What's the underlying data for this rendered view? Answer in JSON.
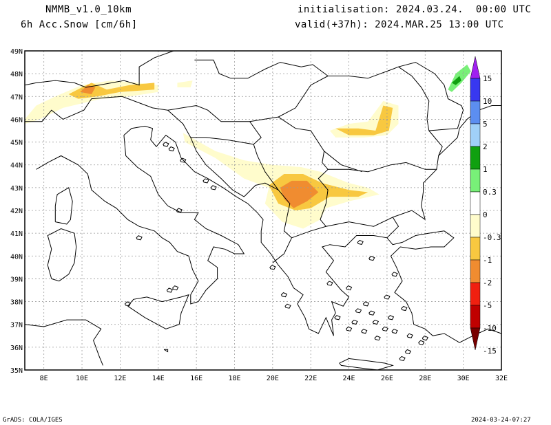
{
  "header": {
    "model": "NMMB_v1.0_10km",
    "variable": "6h Acc.Snow [cm/6h]",
    "init": "initialisation: 2024.03.24.  00:00 UTC",
    "valid": "valid(+37h): 2024.MAR.25 13:00 UTC"
  },
  "footer": {
    "credit": "GrADS: COLA/IGES",
    "timestamp": "2024-03-24-07:27"
  },
  "map": {
    "lon_labels": [
      "8E",
      "10E",
      "12E",
      "14E",
      "16E",
      "18E",
      "20E",
      "22E",
      "24E",
      "26E",
      "28E",
      "30E",
      "32E"
    ],
    "lat_labels": [
      "49N",
      "48N",
      "47N",
      "46N",
      "45N",
      "44N",
      "43N",
      "42N",
      "41N",
      "40N",
      "39N",
      "38N",
      "37N",
      "36N",
      "35N"
    ],
    "lon_range": [
      7,
      32
    ],
    "lat_range": [
      35,
      49
    ]
  },
  "colorbar": {
    "classes": [
      {
        "color": "#a020f0",
        "label": "15"
      },
      {
        "color": "#3838f0",
        "label": "10"
      },
      {
        "color": "#5c8ef0",
        "label": "5"
      },
      {
        "color": "#a0d0f8",
        "label": "2"
      },
      {
        "color": "#10a010",
        "label": "1"
      },
      {
        "color": "#78f078",
        "label": "0.3"
      },
      {
        "color": "#ffffff",
        "label": "0"
      },
      {
        "color": "#fffccc",
        "label": "-0.3"
      },
      {
        "color": "#f8c840",
        "label": "-1"
      },
      {
        "color": "#f08c30",
        "label": "-2"
      },
      {
        "color": "#f02010",
        "label": "-5"
      },
      {
        "color": "#c00000",
        "label": "-10"
      },
      {
        "color": "#780000",
        "label": "-15"
      }
    ]
  },
  "snow_areas": [
    {
      "name": "alps-west-light",
      "level": "light",
      "coords": [
        [
          7.0,
          46.0
        ],
        [
          7.6,
          46.6
        ],
        [
          8.6,
          47.0
        ],
        [
          10.0,
          47.5
        ],
        [
          11.5,
          47.7
        ],
        [
          13.0,
          47.6
        ],
        [
          14.0,
          47.5
        ],
        [
          14.0,
          47.2
        ],
        [
          12.5,
          47.0
        ],
        [
          11.0,
          46.9
        ],
        [
          9.0,
          46.5
        ],
        [
          7.8,
          46.0
        ],
        [
          7.0,
          45.8
        ]
      ]
    },
    {
      "name": "alps-moderate",
      "level": "moderate",
      "coords": [
        [
          9.3,
          47.1
        ],
        [
          10.0,
          47.4
        ],
        [
          10.5,
          47.6
        ],
        [
          11.3,
          47.3
        ],
        [
          12.5,
          47.5
        ],
        [
          13.8,
          47.6
        ],
        [
          13.8,
          47.3
        ],
        [
          12.0,
          47.2
        ],
        [
          10.8,
          47.0
        ],
        [
          9.8,
          46.9
        ]
      ]
    },
    {
      "name": "alps-heavy",
      "level": "heavy",
      "coords": [
        [
          9.9,
          47.2
        ],
        [
          10.3,
          47.5
        ],
        [
          10.7,
          47.4
        ],
        [
          10.5,
          47.1
        ]
      ]
    },
    {
      "name": "alps-east-patch",
      "level": "light",
      "coords": [
        [
          15.0,
          47.6
        ],
        [
          15.8,
          47.7
        ],
        [
          15.7,
          47.4
        ],
        [
          15.0,
          47.4
        ]
      ]
    },
    {
      "name": "balkan-light",
      "level": "light",
      "coords": [
        [
          15.3,
          45.4
        ],
        [
          17.0,
          44.6
        ],
        [
          18.5,
          44.2
        ],
        [
          20.0,
          44.0
        ],
        [
          21.5,
          43.9
        ],
        [
          22.5,
          43.7
        ],
        [
          24.0,
          43.2
        ],
        [
          25.0,
          43.0
        ],
        [
          25.6,
          42.7
        ],
        [
          24.0,
          42.4
        ],
        [
          22.8,
          42.1
        ],
        [
          22.5,
          41.6
        ],
        [
          21.6,
          41.2
        ],
        [
          20.5,
          41.5
        ],
        [
          19.6,
          42.3
        ],
        [
          19.8,
          43.0
        ],
        [
          18.5,
          43.4
        ],
        [
          17.0,
          44.3
        ],
        [
          15.4,
          45.0
        ]
      ]
    },
    {
      "name": "balkan-moderate",
      "level": "moderate",
      "coords": [
        [
          19.8,
          43.1
        ],
        [
          20.6,
          43.6
        ],
        [
          21.6,
          43.6
        ],
        [
          22.6,
          43.2
        ],
        [
          24.0,
          42.9
        ],
        [
          25.0,
          42.8
        ],
        [
          24.5,
          42.6
        ],
        [
          23.0,
          42.6
        ],
        [
          22.0,
          42.1
        ],
        [
          21.2,
          42.0
        ],
        [
          20.3,
          42.3
        ]
      ]
    },
    {
      "name": "balkan-heavy",
      "level": "heavy",
      "coords": [
        [
          20.4,
          43.0
        ],
        [
          21.0,
          43.3
        ],
        [
          21.8,
          43.3
        ],
        [
          22.4,
          42.8
        ],
        [
          21.8,
          42.4
        ],
        [
          21.1,
          42.1
        ],
        [
          20.6,
          42.5
        ]
      ]
    },
    {
      "name": "carpathian-light",
      "level": "light",
      "coords": [
        [
          23.0,
          45.5
        ],
        [
          24.0,
          45.8
        ],
        [
          25.0,
          45.9
        ],
        [
          25.8,
          46.8
        ],
        [
          26.6,
          46.6
        ],
        [
          26.6,
          45.8
        ],
        [
          26.0,
          45.3
        ],
        [
          24.8,
          45.2
        ],
        [
          23.3,
          45.2
        ]
      ]
    },
    {
      "name": "carpathian-moderate",
      "level": "moderate",
      "coords": [
        [
          23.3,
          45.6
        ],
        [
          24.5,
          45.6
        ],
        [
          25.4,
          45.5
        ],
        [
          25.8,
          46.6
        ],
        [
          26.3,
          46.5
        ],
        [
          26.1,
          45.5
        ],
        [
          25.3,
          45.3
        ],
        [
          24.0,
          45.3
        ]
      ]
    },
    {
      "name": "black-sea-coast-green",
      "level": "green",
      "coords": [
        [
          29.2,
          47.3
        ],
        [
          29.6,
          48.0
        ],
        [
          30.2,
          48.4
        ],
        [
          30.4,
          48.1
        ],
        [
          29.9,
          47.6
        ],
        [
          29.4,
          47.2
        ]
      ]
    },
    {
      "name": "black-sea-coast-darkgreen",
      "level": "darkgreen",
      "coords": [
        [
          29.4,
          47.6
        ],
        [
          29.8,
          47.9
        ],
        [
          29.9,
          47.7
        ],
        [
          29.6,
          47.5
        ]
      ]
    }
  ]
}
